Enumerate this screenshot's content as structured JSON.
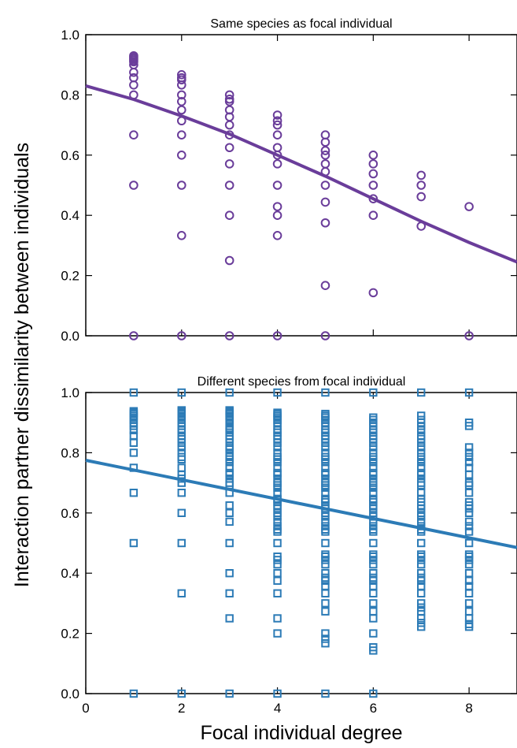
{
  "ylabel": "Interaction partner dissimilarity between individuals",
  "xlabel": "Focal individual degree",
  "chart_data": [
    {
      "type": "scatter",
      "title": "Same species as focal individual",
      "xlim": [
        0,
        9
      ],
      "ylim": [
        0,
        1.0
      ],
      "xticks": [
        0,
        2,
        4,
        6,
        8
      ],
      "xtick_labels": [
        "0",
        "2",
        "4",
        "6",
        "8"
      ],
      "yticks": [
        0,
        0.2,
        0.4,
        0.6,
        0.8,
        1.0
      ],
      "ytick_labels": [
        "0.0",
        "0.2",
        "0.4",
        "0.6",
        "0.8",
        "1.0"
      ],
      "color": "#6a3d9a",
      "marker": "circle",
      "grid": false,
      "points": [
        {
          "x": 1,
          "y": [
            0.93,
            0.925,
            0.92,
            0.915,
            0.91,
            0.9,
            0.875,
            0.857,
            0.833,
            0.8,
            0.667,
            0.5,
            0.0
          ]
        },
        {
          "x": 2,
          "y": [
            0.867,
            0.857,
            0.85,
            0.833,
            0.8,
            0.778,
            0.75,
            0.714,
            0.667,
            0.6,
            0.5,
            0.333,
            0.0
          ]
        },
        {
          "x": 3,
          "y": [
            0.8,
            0.786,
            0.778,
            0.75,
            0.727,
            0.7,
            0.667,
            0.625,
            0.571,
            0.5,
            0.4,
            0.25,
            0.0
          ]
        },
        {
          "x": 4,
          "y": [
            0.733,
            0.714,
            0.7,
            0.667,
            0.625,
            0.6,
            0.571,
            0.5,
            0.429,
            0.4,
            0.333,
            0.0
          ]
        },
        {
          "x": 5,
          "y": [
            0.667,
            0.643,
            0.615,
            0.6,
            0.571,
            0.545,
            0.5,
            0.444,
            0.375,
            0.167,
            0.0
          ]
        },
        {
          "x": 6,
          "y": [
            0.6,
            0.571,
            0.538,
            0.5,
            0.455,
            0.4,
            0.143
          ]
        },
        {
          "x": 7,
          "y": [
            0.533,
            0.5,
            0.462,
            0.364
          ]
        },
        {
          "x": 8,
          "y": [
            0.429,
            0.0
          ]
        }
      ],
      "fit_line": {
        "x": [
          0,
          1,
          2,
          3,
          4,
          5,
          6,
          7,
          8,
          9
        ],
        "y": [
          0.83,
          0.785,
          0.73,
          0.67,
          0.6,
          0.53,
          0.455,
          0.38,
          0.31,
          0.245
        ]
      }
    },
    {
      "type": "scatter",
      "title": "Different species from focal individual",
      "xlim": [
        0,
        9
      ],
      "ylim": [
        0,
        1.0
      ],
      "xticks": [
        0,
        2,
        4,
        6,
        8
      ],
      "xtick_labels": [
        "0",
        "2",
        "4",
        "6",
        "8"
      ],
      "yticks": [
        0,
        0.2,
        0.4,
        0.6,
        0.8,
        1.0
      ],
      "ytick_labels": [
        "0.0",
        "0.2",
        "0.4",
        "0.6",
        "0.8",
        "1.0"
      ],
      "color": "#2c7bb6",
      "marker": "square",
      "grid": false,
      "points": [
        {
          "x": 1,
          "y": [
            1.0,
            0.938,
            0.933,
            0.929,
            0.923,
            0.917,
            0.909,
            0.9,
            0.889,
            0.875,
            0.857,
            0.833,
            0.8,
            0.75,
            0.667,
            0.5,
            0.0
          ]
        },
        {
          "x": 2,
          "y": [
            1.0,
            0.941,
            0.938,
            0.933,
            0.929,
            0.923,
            0.917,
            0.909,
            0.9,
            0.889,
            0.875,
            0.867,
            0.857,
            0.846,
            0.833,
            0.818,
            0.8,
            0.786,
            0.778,
            0.75,
            0.727,
            0.714,
            0.7,
            0.667,
            0.6,
            0.5,
            0.333,
            0.0
          ]
        },
        {
          "x": 3,
          "y": [
            1.0,
            0.941,
            0.938,
            0.933,
            0.929,
            0.923,
            0.917,
            0.909,
            0.9,
            0.889,
            0.882,
            0.875,
            0.867,
            0.857,
            0.846,
            0.833,
            0.818,
            0.812,
            0.8,
            0.786,
            0.778,
            0.769,
            0.75,
            0.733,
            0.727,
            0.714,
            0.7,
            0.692,
            0.667,
            0.625,
            0.6,
            0.571,
            0.5,
            0.4,
            0.333,
            0.25,
            0.0
          ]
        },
        {
          "x": 4,
          "y": [
            1.0,
            0.933,
            0.929,
            0.923,
            0.917,
            0.909,
            0.9,
            0.889,
            0.875,
            0.867,
            0.857,
            0.846,
            0.833,
            0.818,
            0.8,
            0.786,
            0.778,
            0.769,
            0.75,
            0.733,
            0.727,
            0.714,
            0.7,
            0.692,
            0.684,
            0.667,
            0.647,
            0.643,
            0.636,
            0.625,
            0.615,
            0.6,
            0.588,
            0.571,
            0.556,
            0.545,
            0.538,
            0.5,
            0.455,
            0.444,
            0.429,
            0.4,
            0.375,
            0.333,
            0.25,
            0.2,
            0.0
          ]
        },
        {
          "x": 5,
          "y": [
            1.0,
            0.929,
            0.923,
            0.917,
            0.909,
            0.9,
            0.889,
            0.875,
            0.867,
            0.857,
            0.846,
            0.833,
            0.818,
            0.8,
            0.786,
            0.778,
            0.769,
            0.75,
            0.733,
            0.727,
            0.714,
            0.7,
            0.692,
            0.684,
            0.667,
            0.647,
            0.643,
            0.636,
            0.625,
            0.615,
            0.6,
            0.588,
            0.571,
            0.556,
            0.545,
            0.538,
            0.5,
            0.462,
            0.455,
            0.444,
            0.429,
            0.4,
            0.385,
            0.375,
            0.357,
            0.333,
            0.3,
            0.273,
            0.2,
            0.182,
            0.167,
            0.0
          ]
        },
        {
          "x": 6,
          "y": [
            1.0,
            0.917,
            0.909,
            0.9,
            0.889,
            0.875,
            0.867,
            0.857,
            0.846,
            0.833,
            0.818,
            0.8,
            0.786,
            0.778,
            0.769,
            0.75,
            0.733,
            0.727,
            0.714,
            0.7,
            0.692,
            0.684,
            0.667,
            0.647,
            0.643,
            0.636,
            0.625,
            0.615,
            0.6,
            0.588,
            0.571,
            0.556,
            0.545,
            0.538,
            0.5,
            0.462,
            0.455,
            0.444,
            0.429,
            0.4,
            0.385,
            0.375,
            0.357,
            0.333,
            0.3,
            0.273,
            0.25,
            0.2,
            0.154,
            0.143,
            0.0
          ]
        },
        {
          "x": 7,
          "y": [
            1.0,
            0.923,
            0.909,
            0.9,
            0.889,
            0.875,
            0.857,
            0.846,
            0.833,
            0.818,
            0.8,
            0.786,
            0.778,
            0.769,
            0.75,
            0.733,
            0.727,
            0.714,
            0.7,
            0.692,
            0.667,
            0.647,
            0.636,
            0.625,
            0.615,
            0.6,
            0.588,
            0.571,
            0.556,
            0.545,
            0.538,
            0.5,
            0.462,
            0.455,
            0.444,
            0.429,
            0.4,
            0.385,
            0.375,
            0.357,
            0.333,
            0.3,
            0.286,
            0.273,
            0.25,
            0.235,
            0.222
          ]
        },
        {
          "x": 8,
          "y": [
            1.0,
            0.9,
            0.889,
            0.818,
            0.8,
            0.786,
            0.769,
            0.75,
            0.727,
            0.7,
            0.692,
            0.667,
            0.636,
            0.625,
            0.615,
            0.6,
            0.571,
            0.556,
            0.538,
            0.5,
            0.462,
            0.455,
            0.444,
            0.429,
            0.4,
            0.375,
            0.357,
            0.333,
            0.3,
            0.273,
            0.25,
            0.231,
            0.222
          ]
        }
      ],
      "fit_line": {
        "x": [
          0,
          9
        ],
        "y": [
          0.775,
          0.485
        ]
      }
    }
  ]
}
